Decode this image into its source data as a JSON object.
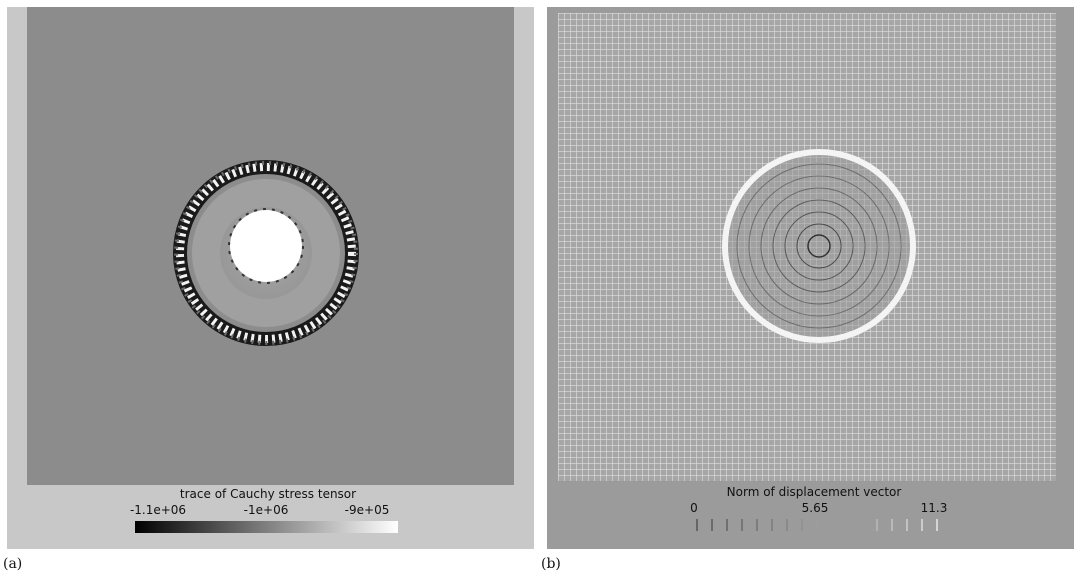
{
  "panels": [
    {
      "caption": "(a)",
      "colorbar": {
        "title": "trace of Cauchy stress tensor",
        "ticks": [
          "-1.1e+06",
          "-1e+06",
          "-9e+05"
        ]
      }
    },
    {
      "caption": "(b)",
      "colorbar": {
        "title": "Norm of displacement vector",
        "ticks": [
          "0",
          "5.65",
          "11.3"
        ]
      }
    }
  ],
  "colors": {
    "panel_a_background": "#c8c8c8",
    "panel_a_field": "#8c8c8c",
    "panel_b_background": "#9b9b9b",
    "panel_b_field": "#a6a6a6",
    "grid": "#ececec"
  }
}
